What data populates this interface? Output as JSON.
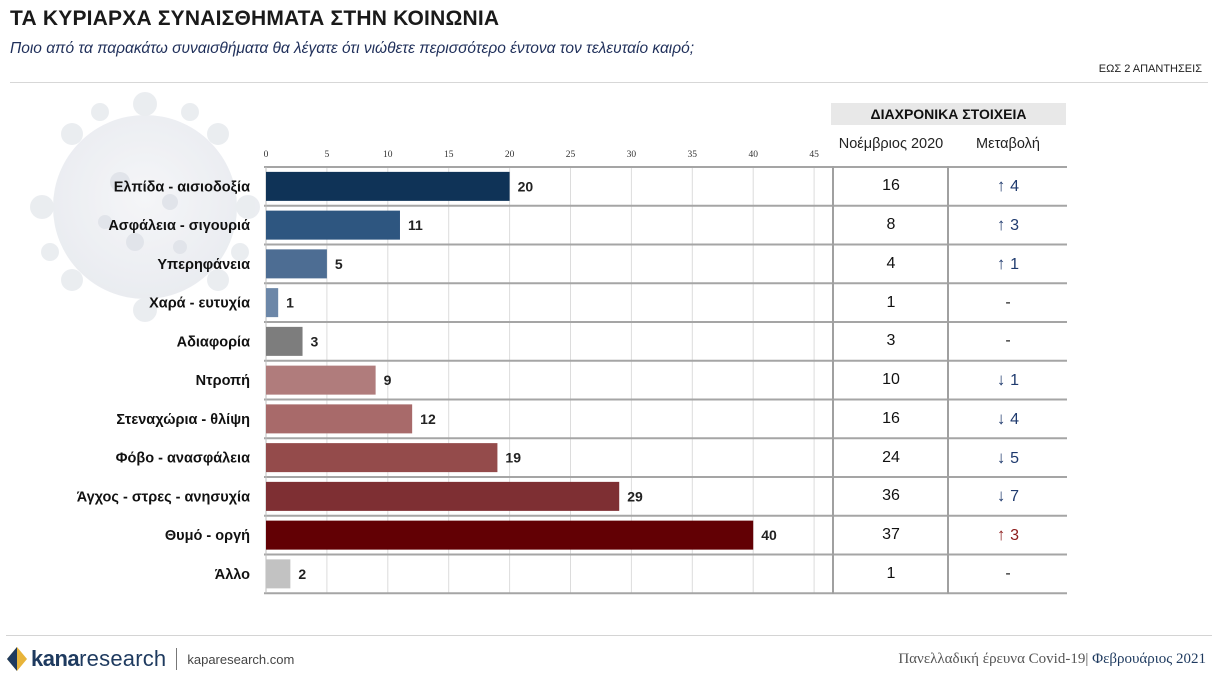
{
  "title": "ΤΑ ΚΥΡΙΑΡΧΑ ΣΥΝΑΙΣΘΗΜΑΤΑ ΣΤΗΝ ΚΟΙΝΩΝΙΑ",
  "subtitle": "Ποιο από τα παρακάτω συναισθήματα θα λέγατε ότι νιώθετε περισσότερο έντονα τον τελευταίο καιρό;",
  "note": "ΕΩΣ 2 ΑΠΑΝΤΗΣΕΙΣ",
  "trend": {
    "header": "ΔΙΑΧΡΟΝΙΚΑ ΣΤΟΙΧΕΙΑ",
    "prev_label": "Νοέμβριος 2020",
    "change_label": "Μεταβολή",
    "rows": [
      {
        "prev": "16",
        "arrow": "↑",
        "change": "4",
        "color": "#1f3a6e"
      },
      {
        "prev": "8",
        "arrow": "↑",
        "change": "3",
        "color": "#1f3a6e"
      },
      {
        "prev": "4",
        "arrow": "↑",
        "change": "1",
        "color": "#1f3a6e"
      },
      {
        "prev": "1",
        "arrow": "",
        "change": "-",
        "color": "#222222"
      },
      {
        "prev": "3",
        "arrow": "",
        "change": "-",
        "color": "#222222"
      },
      {
        "prev": "10",
        "arrow": "↓",
        "change": "1",
        "color": "#1f3a6e"
      },
      {
        "prev": "16",
        "arrow": "↓",
        "change": "4",
        "color": "#1f3a6e"
      },
      {
        "prev": "24",
        "arrow": "↓",
        "change": "5",
        "color": "#1f3a6e"
      },
      {
        "prev": "36",
        "arrow": "↓",
        "change": "7",
        "color": "#1f3a6e"
      },
      {
        "prev": "37",
        "arrow": "↑",
        "change": "3",
        "color": "#8b1a1a"
      },
      {
        "prev": "1",
        "arrow": "",
        "change": "-",
        "color": "#222222"
      }
    ]
  },
  "chart_data": {
    "type": "bar",
    "orientation": "horizontal",
    "title": "ΤΑ ΚΥΡΙΑΡΧΑ ΣΥΝΑΙΣΘΗΜΑΤΑ ΣΤΗΝ ΚΟΙΝΩΝΙΑ",
    "xlim": [
      0,
      45
    ],
    "xticks": [
      0,
      5,
      10,
      15,
      20,
      25,
      30,
      35,
      40,
      45
    ],
    "categories": [
      "Ελπίδα - αισιοδοξία",
      "Ασφάλεια - σιγουριά",
      "Υπερηφάνεια",
      "Χαρά - ευτυχία",
      "Αδιαφορία",
      "Ντροπή",
      "Στεναχώρια - θλίψη",
      "Φόβο - ανασφάλεια",
      "Άγχος - στρες - ανησυχία",
      "Θυμό - οργή",
      "Άλλο"
    ],
    "values": [
      20,
      11,
      5,
      1,
      3,
      9,
      12,
      19,
      29,
      40,
      2
    ],
    "colors": [
      "#0f3357",
      "#2e5680",
      "#4d6d93",
      "#6c87a8",
      "#7d7d7d",
      "#b07c7c",
      "#a86a6a",
      "#944b4b",
      "#7e2f33",
      "#620004",
      "#c2c2c2"
    ]
  },
  "footer": {
    "logo_bold": "kana",
    "logo_light": "research",
    "site": "kaparesearch.com",
    "survey": "Πανελλαδική έρευνα Covid-19|",
    "month": "Φεβρουάριος 2021"
  }
}
